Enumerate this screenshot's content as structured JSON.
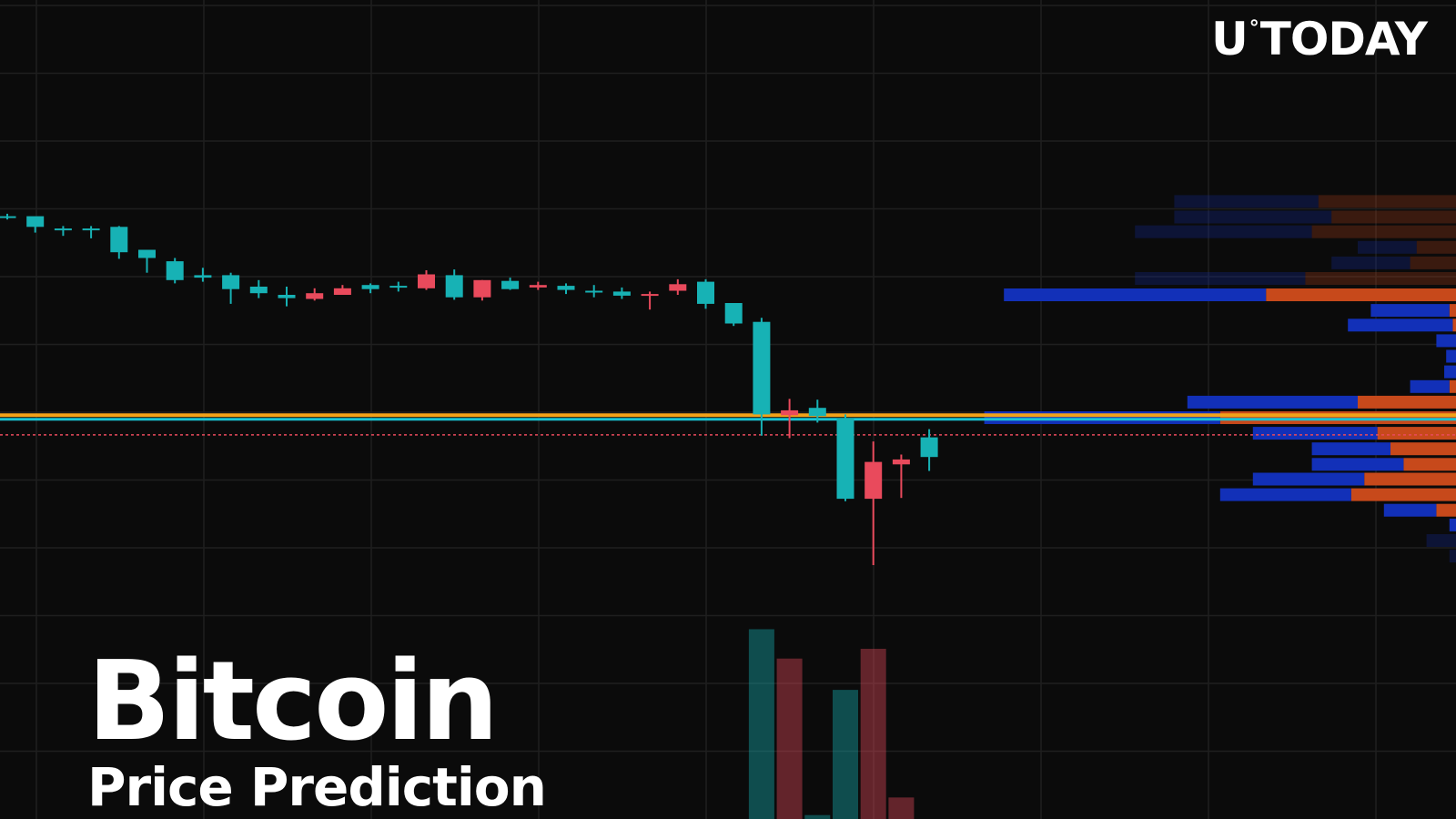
{
  "brand": {
    "logo_text_left": "U",
    "logo_degree": "°",
    "logo_text_right": "TODAY"
  },
  "headline": {
    "title": "Bitcoin",
    "subtitle": "Price Prediction"
  },
  "colors": {
    "background": "#0b0b0b",
    "grid": "#1f1f1f",
    "bull": "#17b2b5",
    "bear": "#e94a5c",
    "support_orange": "#f2a21a",
    "support_cyan": "#19c4d4",
    "price_dotted": "#e94a5c",
    "vp_blue": "#1230b8",
    "vp_orange": "#c7491b"
  },
  "chart_data": {
    "type": "candlestick",
    "title": "",
    "xlabel": "",
    "ylabel": "",
    "grid": true,
    "ylim": [
      0,
      100
    ],
    "candles": [
      {
        "o": 73.6,
        "h": 73.9,
        "l": 73.2,
        "c": 73.6
      },
      {
        "o": 72.3,
        "h": 72.6,
        "l": 71.6,
        "c": 73.6
      },
      {
        "o": 72.0,
        "h": 72.4,
        "l": 71.2,
        "c": 72.1
      },
      {
        "o": 72.1,
        "h": 72.4,
        "l": 70.9,
        "c": 72.1
      },
      {
        "o": 69.2,
        "h": 72.4,
        "l": 68.4,
        "c": 72.3
      },
      {
        "o": 68.5,
        "h": 69.4,
        "l": 66.7,
        "c": 69.5
      },
      {
        "o": 65.8,
        "h": 68.5,
        "l": 65.4,
        "c": 68.1
      },
      {
        "o": 66.1,
        "h": 67.3,
        "l": 65.6,
        "c": 66.4
      },
      {
        "o": 64.7,
        "h": 66.7,
        "l": 62.9,
        "c": 66.4
      },
      {
        "o": 64.2,
        "h": 65.8,
        "l": 63.6,
        "c": 65.0
      },
      {
        "o": 63.6,
        "h": 65.0,
        "l": 62.6,
        "c": 64.0
      },
      {
        "o": 64.2,
        "h": 64.8,
        "l": 63.3,
        "c": 63.5
      },
      {
        "o": 64.8,
        "h": 65.2,
        "l": 64.2,
        "c": 64.0
      },
      {
        "o": 64.7,
        "h": 65.4,
        "l": 64.2,
        "c": 65.2
      },
      {
        "o": 64.9,
        "h": 65.6,
        "l": 64.4,
        "c": 65.1
      },
      {
        "o": 66.5,
        "h": 67.0,
        "l": 64.6,
        "c": 64.8
      },
      {
        "o": 63.7,
        "h": 67.1,
        "l": 63.4,
        "c": 66.4
      },
      {
        "o": 65.8,
        "h": 65.8,
        "l": 63.3,
        "c": 63.7
      },
      {
        "o": 64.7,
        "h": 66.1,
        "l": 64.6,
        "c": 65.7
      },
      {
        "o": 65.2,
        "h": 65.6,
        "l": 64.6,
        "c": 64.9
      },
      {
        "o": 64.6,
        "h": 65.4,
        "l": 64.1,
        "c": 65.1
      },
      {
        "o": 64.3,
        "h": 65.2,
        "l": 63.7,
        "c": 64.5
      },
      {
        "o": 63.9,
        "h": 64.9,
        "l": 63.5,
        "c": 64.4
      },
      {
        "o": 64.1,
        "h": 64.4,
        "l": 62.2,
        "c": 64.0
      },
      {
        "o": 65.3,
        "h": 65.9,
        "l": 64.0,
        "c": 64.5
      },
      {
        "o": 62.9,
        "h": 65.9,
        "l": 62.3,
        "c": 65.6
      },
      {
        "o": 60.5,
        "h": 62.9,
        "l": 60.2,
        "c": 63.0
      },
      {
        "o": 49.4,
        "h": 61.2,
        "l": 46.8,
        "c": 60.7
      },
      {
        "o": 49.9,
        "h": 51.3,
        "l": 46.5,
        "c": 49.3
      },
      {
        "o": 49.2,
        "h": 51.2,
        "l": 48.4,
        "c": 50.2
      },
      {
        "o": 39.1,
        "h": 49.4,
        "l": 38.8,
        "c": 48.9
      },
      {
        "o": 43.6,
        "h": 46.1,
        "l": 31.0,
        "c": 39.1
      },
      {
        "o": 43.9,
        "h": 44.5,
        "l": 39.2,
        "c": 43.3
      },
      {
        "o": 44.2,
        "h": 47.6,
        "l": 42.5,
        "c": 46.6
      }
    ],
    "volumes": [
      {
        "v": 97,
        "dir": "bull"
      },
      {
        "v": 82,
        "dir": "bear"
      },
      {
        "v": 2,
        "dir": "bull"
      },
      {
        "v": 66,
        "dir": "bull"
      },
      {
        "v": 87,
        "dir": "bear"
      },
      {
        "v": 11,
        "dir": "bear"
      }
    ],
    "levels": {
      "support_orange": 49.3,
      "support_cyan": 48.8,
      "current_price": 46.9
    },
    "volume_profile": [
      {
        "y": 75.4,
        "buy": 22,
        "sell": 21,
        "faded": true
      },
      {
        "y": 73.5,
        "buy": 24,
        "sell": 19,
        "faded": true
      },
      {
        "y": 71.7,
        "buy": 27,
        "sell": 22,
        "faded": true
      },
      {
        "y": 69.8,
        "buy": 9,
        "sell": 6,
        "faded": true
      },
      {
        "y": 67.9,
        "buy": 12,
        "sell": 7,
        "faded": true
      },
      {
        "y": 66.0,
        "buy": 26,
        "sell": 23,
        "faded": true
      },
      {
        "y": 64.0,
        "buy": 40,
        "sell": 29,
        "faded": false
      },
      {
        "y": 62.1,
        "buy": 12,
        "sell": 1,
        "faded": false
      },
      {
        "y": 60.3,
        "buy": 16,
        "sell": 0.5,
        "faded": false
      },
      {
        "y": 58.4,
        "buy": 3,
        "sell": 0,
        "faded": false
      },
      {
        "y": 56.5,
        "buy": 1.5,
        "sell": 0,
        "faded": false
      },
      {
        "y": 54.6,
        "buy": 1.8,
        "sell": 0,
        "faded": false
      },
      {
        "y": 52.8,
        "buy": 6,
        "sell": 1,
        "faded": false
      },
      {
        "y": 50.9,
        "buy": 26,
        "sell": 15,
        "faded": false
      },
      {
        "y": 49.0,
        "buy": 36,
        "sell": 36,
        "faded": false
      },
      {
        "y": 47.1,
        "buy": 19,
        "sell": 12,
        "faded": false
      },
      {
        "y": 45.2,
        "buy": 12,
        "sell": 10,
        "faded": false
      },
      {
        "y": 43.3,
        "buy": 14,
        "sell": 8,
        "faded": false
      },
      {
        "y": 41.5,
        "buy": 17,
        "sell": 14,
        "faded": false
      },
      {
        "y": 39.6,
        "buy": 20,
        "sell": 16,
        "faded": false
      },
      {
        "y": 37.7,
        "buy": 8,
        "sell": 3,
        "faded": false
      },
      {
        "y": 35.9,
        "buy": 1,
        "sell": 0,
        "faded": false
      },
      {
        "y": 34.0,
        "buy": 4.5,
        "sell": 0,
        "faded": true
      },
      {
        "y": 32.1,
        "buy": 1,
        "sell": 0,
        "faded": true
      }
    ]
  }
}
